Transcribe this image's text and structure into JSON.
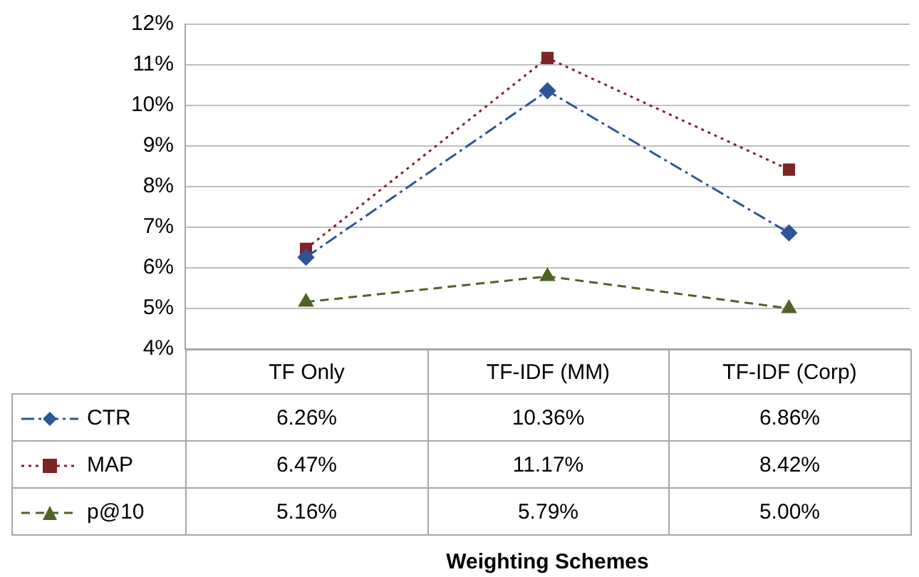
{
  "chart_data": {
    "type": "line",
    "annotations": [
      "Weighting Schemes"
    ],
    "categories": [
      "TF Only",
      "TF-IDF (MM)",
      "TF-IDF (Corp)"
    ],
    "ylim": [
      4,
      12
    ],
    "yticks": [
      {
        "value": 4,
        "label": "4%"
      },
      {
        "value": 5,
        "label": "5%"
      },
      {
        "value": 6,
        "label": "6%"
      },
      {
        "value": 7,
        "label": "7%"
      },
      {
        "value": 8,
        "label": "8%"
      },
      {
        "value": 9,
        "label": "9%"
      },
      {
        "value": 10,
        "label": "10%"
      },
      {
        "value": 11,
        "label": "11%"
      },
      {
        "value": 12,
        "label": "12%"
      }
    ],
    "grid": "y",
    "legend": "bottom",
    "series": [
      {
        "name": "CTR",
        "color": "#2e5597",
        "marker": "diamond",
        "line_style": "dashdot",
        "values": [
          6.26,
          10.36,
          6.86
        ],
        "value_labels": [
          "6.26%",
          "10.36%",
          "6.86%"
        ]
      },
      {
        "name": "MAP",
        "color": "#7b2526",
        "marker": "square",
        "line_style": "dotted",
        "values": [
          6.47,
          11.17,
          8.42
        ],
        "value_labels": [
          "6.47%",
          "11.17%",
          "8.42%"
        ]
      },
      {
        "name": "p@10",
        "color": "#4f6228",
        "marker": "triangle",
        "line_style": "dashed",
        "values": [
          5.16,
          5.79,
          5.0
        ],
        "value_labels": [
          "5.16%",
          "5.79%",
          "5.00%"
        ]
      }
    ]
  }
}
